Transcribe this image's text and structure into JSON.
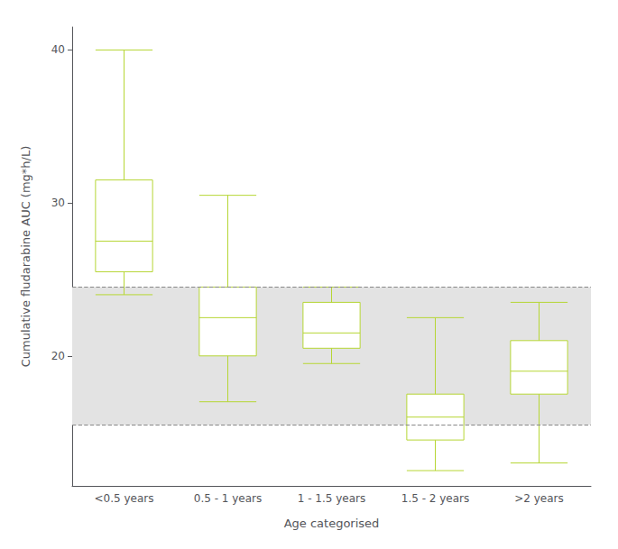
{
  "chart_data": {
    "type": "boxplot",
    "categories": [
      "<0.5 years",
      "0.5 - 1 years",
      "1 - 1.5 years",
      "1.5 - 2 years",
      ">2 years"
    ],
    "boxes": [
      {
        "q1": 25.5,
        "median": 27.5,
        "q3": 31.5,
        "whislo": 24.0,
        "whishi": 40.0
      },
      {
        "q1": 20.0,
        "median": 22.5,
        "q3": 24.5,
        "whislo": 17.0,
        "whishi": 30.5
      },
      {
        "q1": 20.5,
        "median": 21.5,
        "q3": 23.5,
        "whislo": 19.5,
        "whishi": 24.5
      },
      {
        "q1": 14.5,
        "median": 16.0,
        "q3": 17.5,
        "whislo": 12.5,
        "whishi": 22.5
      },
      {
        "q1": 17.5,
        "median": 19.0,
        "q3": 21.0,
        "whislo": 13.0,
        "whishi": 23.5
      }
    ],
    "dashed_lines": [
      15.5,
      24.5
    ],
    "xlabel": "Age categorised",
    "ylabel": "Cumulative fludarabine AUC (mg*h/L)",
    "ylim": [
      11.5,
      41.5
    ],
    "yticks": [
      20,
      30,
      40
    ],
    "grid": false
  }
}
